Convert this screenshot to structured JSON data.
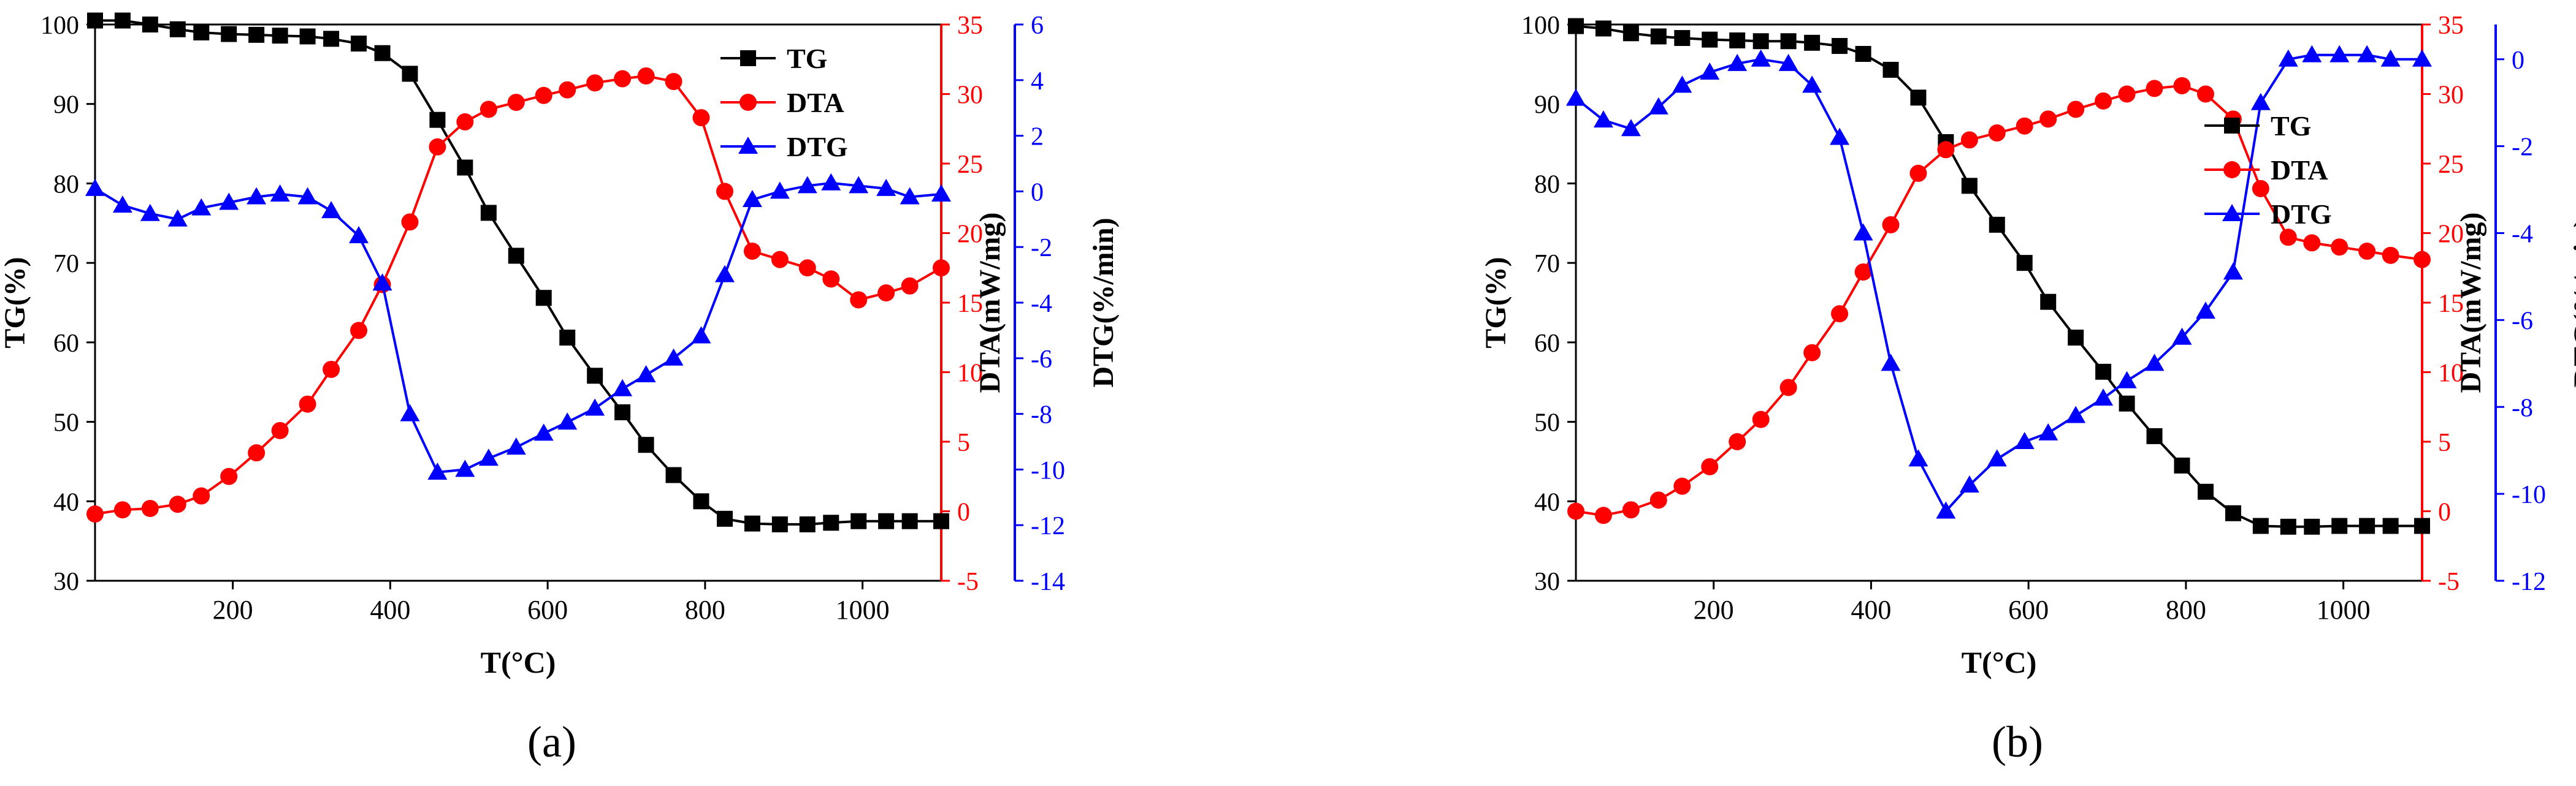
{
  "colors": {
    "tg": "#000000",
    "dta": "#ff0000",
    "dtg": "#0000ff"
  },
  "panels": [
    {
      "id": "a",
      "caption": "(a)"
    },
    {
      "id": "b",
      "caption": "(b)"
    }
  ],
  "chart_data": [
    {
      "panel": "a",
      "type": "line",
      "title": "",
      "xlabel": "T(°C)",
      "xlim": [
        25,
        1100
      ],
      "xticks": [
        200,
        400,
        600,
        800,
        1000
      ],
      "legend": "top-right",
      "axes": [
        {
          "key": "tg",
          "label": "TG(%)",
          "side": "left",
          "ylim": [
            30,
            100
          ],
          "ticks": [
            30,
            40,
            50,
            60,
            70,
            80,
            90,
            100
          ],
          "color": "#000000"
        },
        {
          "key": "dta",
          "label": "DTA(mW/mg)",
          "side": "right",
          "ylim": [
            -5,
            35
          ],
          "ticks": [
            -5,
            0,
            5,
            10,
            15,
            20,
            25,
            30,
            35
          ],
          "color": "#ff0000"
        },
        {
          "key": "dtg",
          "label": "DTG(%/min)",
          "side": "right-outer",
          "ylim": [
            -14,
            6
          ],
          "ticks": [
            -14,
            -12,
            -10,
            -8,
            -6,
            -4,
            -2,
            0,
            2,
            4,
            6
          ],
          "color": "#0000ff"
        }
      ],
      "series": [
        {
          "name": "TG",
          "axis": "tg",
          "marker": "square",
          "color": "#000000",
          "x": [
            25,
            60,
            95,
            130,
            160,
            195,
            230,
            260,
            295,
            325,
            360,
            390,
            425,
            460,
            495,
            525,
            560,
            595,
            625,
            660,
            695,
            725,
            760,
            795,
            825,
            860,
            895,
            930,
            960,
            995,
            1030,
            1060,
            1100
          ],
          "y": [
            100.5,
            100.5,
            100.0,
            99.4,
            99.0,
            98.8,
            98.7,
            98.6,
            98.5,
            98.2,
            97.6,
            96.4,
            93.8,
            88.0,
            82.0,
            76.3,
            70.9,
            65.6,
            60.6,
            55.8,
            51.2,
            47.1,
            43.3,
            40.0,
            37.8,
            37.2,
            37.1,
            37.1,
            37.3,
            37.5,
            37.5,
            37.5,
            37.5
          ]
        },
        {
          "name": "DTA",
          "axis": "dta",
          "color": "#ff0000",
          "marker": "circle",
          "x": [
            25,
            60,
            95,
            130,
            160,
            195,
            230,
            260,
            295,
            325,
            360,
            390,
            425,
            460,
            495,
            525,
            560,
            595,
            625,
            660,
            695,
            725,
            760,
            795,
            825,
            860,
            895,
            930,
            960,
            995,
            1030,
            1060,
            1100
          ],
          "y": [
            -0.2,
            0.1,
            0.2,
            0.5,
            1.1,
            2.5,
            4.2,
            5.8,
            7.7,
            10.2,
            13.0,
            16.3,
            20.8,
            26.2,
            28.0,
            28.9,
            29.4,
            29.9,
            30.3,
            30.8,
            31.1,
            31.3,
            30.9,
            28.3,
            23.0,
            18.7,
            18.1,
            17.5,
            16.7,
            15.2,
            15.7,
            16.2,
            17.5
          ]
        },
        {
          "name": "DTG",
          "axis": "dtg",
          "color": "#0000ff",
          "marker": "triangle",
          "x": [
            25,
            60,
            95,
            130,
            160,
            195,
            230,
            260,
            295,
            325,
            360,
            390,
            425,
            460,
            495,
            525,
            560,
            595,
            625,
            660,
            695,
            725,
            760,
            795,
            825,
            860,
            895,
            930,
            960,
            995,
            1030,
            1060,
            1100
          ],
          "y": [
            0.1,
            -0.5,
            -0.8,
            -1.0,
            -0.6,
            -0.4,
            -0.2,
            -0.1,
            -0.2,
            -0.7,
            -1.6,
            -3.3,
            -8.0,
            -10.1,
            -10.0,
            -9.6,
            -9.2,
            -8.7,
            -8.3,
            -7.8,
            -7.1,
            -6.6,
            -6.0,
            -5.2,
            -3.0,
            -0.3,
            0.0,
            0.2,
            0.3,
            0.2,
            0.1,
            -0.2,
            -0.1
          ]
        }
      ]
    },
    {
      "panel": "b",
      "type": "line",
      "title": "",
      "xlabel": "T(°C)",
      "xlim": [
        25,
        1100
      ],
      "xticks": [
        200,
        400,
        600,
        800,
        1000
      ],
      "legend": "right",
      "axes": [
        {
          "key": "tg",
          "label": "TG(%)",
          "side": "left",
          "ylim": [
            30,
            100
          ],
          "ticks": [
            30,
            40,
            50,
            60,
            70,
            80,
            90,
            100
          ],
          "color": "#000000"
        },
        {
          "key": "dta",
          "label": "DTA(mW/mg)",
          "side": "right",
          "ylim": [
            -5,
            35
          ],
          "ticks": [
            -5,
            0,
            5,
            10,
            15,
            20,
            25,
            30,
            35
          ],
          "color": "#ff0000"
        },
        {
          "key": "dtg",
          "label": "DTG(%/min)",
          "side": "right-outer",
          "ylim": [
            -12,
            0.8
          ],
          "ticks": [
            -12,
            -10,
            -8,
            -6,
            -4,
            -2,
            0
          ],
          "color": "#0000ff"
        }
      ],
      "series": [
        {
          "name": "TG",
          "axis": "tg",
          "marker": "square",
          "color": "#000000",
          "x": [
            25,
            60,
            95,
            130,
            160,
            195,
            230,
            260,
            295,
            325,
            360,
            390,
            425,
            460,
            495,
            525,
            560,
            595,
            625,
            660,
            695,
            725,
            760,
            795,
            825,
            860,
            895,
            930,
            960,
            995,
            1030,
            1060,
            1100
          ],
          "y": [
            99.8,
            99.5,
            98.9,
            98.5,
            98.3,
            98.1,
            98.0,
            97.9,
            97.9,
            97.7,
            97.3,
            96.3,
            94.3,
            90.8,
            85.2,
            79.7,
            74.8,
            70.0,
            65.1,
            60.6,
            56.3,
            52.3,
            48.2,
            44.5,
            41.2,
            38.5,
            36.9,
            36.8,
            36.8,
            36.9,
            36.9,
            36.9,
            36.9
          ]
        },
        {
          "name": "DTA",
          "axis": "dta",
          "marker": "circle",
          "color": "#ff0000",
          "x": [
            25,
            60,
            95,
            130,
            160,
            195,
            230,
            260,
            295,
            325,
            360,
            390,
            425,
            460,
            495,
            525,
            560,
            595,
            625,
            660,
            695,
            725,
            760,
            795,
            825,
            860,
            895,
            930,
            960,
            995,
            1030,
            1060,
            1100
          ],
          "y": [
            0.0,
            -0.3,
            0.1,
            0.8,
            1.8,
            3.2,
            5.0,
            6.6,
            8.9,
            11.4,
            14.2,
            17.2,
            20.6,
            24.3,
            26.0,
            26.7,
            27.2,
            27.7,
            28.2,
            28.9,
            29.5,
            30.0,
            30.4,
            30.6,
            30.0,
            28.2,
            23.2,
            19.7,
            19.3,
            19.0,
            18.7,
            18.4,
            18.1
          ]
        },
        {
          "name": "DTG",
          "axis": "dtg",
          "marker": "triangle",
          "color": "#0000ff",
          "x": [
            25,
            60,
            95,
            130,
            160,
            195,
            230,
            260,
            295,
            325,
            360,
            390,
            425,
            460,
            495,
            525,
            560,
            595,
            625,
            660,
            695,
            725,
            760,
            795,
            825,
            860,
            895,
            930,
            960,
            995,
            1030,
            1060,
            1100
          ],
          "y": [
            -0.9,
            -1.4,
            -1.6,
            -1.1,
            -0.6,
            -0.3,
            -0.1,
            0.0,
            -0.1,
            -0.6,
            -1.8,
            -4.0,
            -7.0,
            -9.2,
            -10.4,
            -9.8,
            -9.2,
            -8.8,
            -8.6,
            -8.2,
            -7.8,
            -7.4,
            -7.0,
            -6.4,
            -5.8,
            -4.9,
            -1.0,
            0.0,
            0.1,
            0.1,
            0.1,
            0.0,
            0.0
          ]
        }
      ]
    }
  ]
}
